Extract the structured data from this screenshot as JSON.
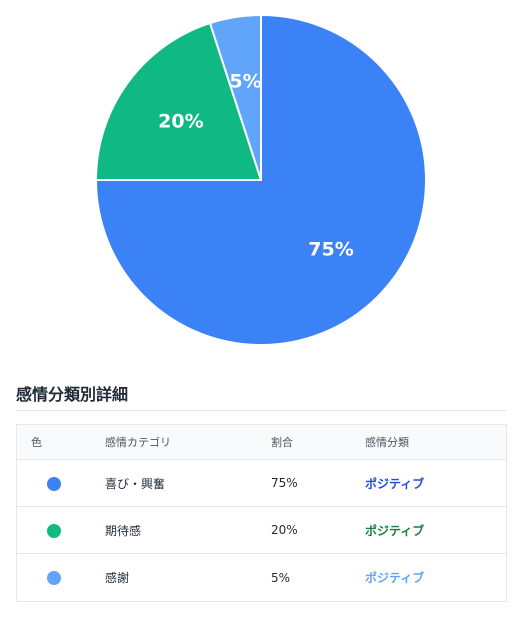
{
  "chart_data": {
    "type": "pie",
    "title": "",
    "slices": [
      {
        "label": "喜び・興奮",
        "value": 75,
        "display": "75%",
        "color": "#3b82f6"
      },
      {
        "label": "期待感",
        "value": 20,
        "display": "20%",
        "color": "#10b981"
      },
      {
        "label": "感謝",
        "value": 5,
        "display": "5%",
        "color": "#60a5fa"
      }
    ],
    "legend": "none"
  },
  "section": {
    "title": "感情分類別詳細"
  },
  "table": {
    "headers": {
      "color": "色",
      "category": "感情カテゴリ",
      "ratio": "割合",
      "classification": "感情分類"
    },
    "rows": [
      {
        "color": "#3b82f6",
        "category": "喜び・興奮",
        "ratio": "75%",
        "classification": "ポジティブ",
        "class_color": "#1d4ed8"
      },
      {
        "color": "#10b981",
        "category": "期待感",
        "ratio": "20%",
        "classification": "ポジティブ",
        "class_color": "#15803d"
      },
      {
        "color": "#60a5fa",
        "category": "感謝",
        "ratio": "5%",
        "classification": "ポジティブ",
        "class_color": "#60a5fa"
      }
    ]
  }
}
